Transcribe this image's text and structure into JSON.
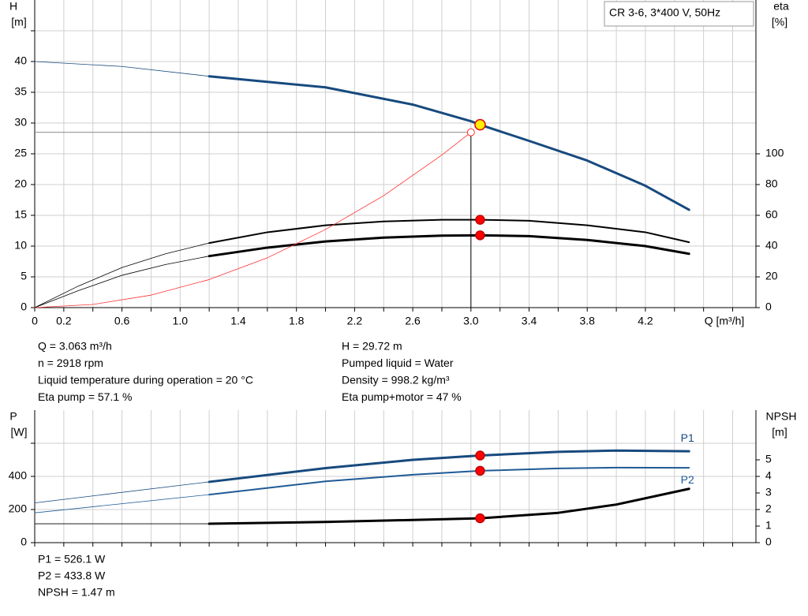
{
  "chart_data": [
    {
      "type": "line",
      "title": "CR 3-6, 3*400 V, 50Hz",
      "x_label": "Q [m³/h]",
      "y_label": [
        "H",
        "[m]"
      ],
      "y2_label": [
        "eta",
        "[%]"
      ],
      "xlim": [
        0,
        4.96
      ],
      "xticks": [
        0,
        0.2,
        0.6,
        {
          "value": 1.0,
          "label": "1.0"
        },
        1.4,
        1.8,
        2.2,
        2.6,
        {
          "value": 3.0,
          "label": "3.0"
        },
        3.4,
        3.8,
        4.2
      ],
      "xminorticks": [
        0.4,
        0.8,
        1.2,
        1.6,
        2.0,
        2.4,
        2.8,
        3.2,
        3.6,
        4.0,
        4.4,
        4.6,
        4.8
      ],
      "ylim": [
        0,
        50
      ],
      "yticks": [
        0,
        5,
        10,
        15,
        20,
        25,
        30,
        35,
        40
      ],
      "yminorticks": [
        45
      ],
      "y2lim": [
        0,
        200
      ],
      "y2ticks": [
        0,
        20,
        40,
        60,
        80,
        100
      ],
      "grid": true,
      "bold_from": 1.2,
      "series": [
        {
          "color": "#174a7e",
          "axis": "y",
          "width": 3,
          "x": [
            0,
            0.6,
            1.2,
            2.0,
            2.6,
            3.0,
            3.063,
            3.4,
            3.8,
            4.2,
            4.5
          ],
          "values": [
            40.0,
            39.2,
            37.6,
            35.8,
            33.0,
            30.3,
            29.72,
            27.1,
            23.9,
            19.8,
            15.9
          ]
        },
        {
          "color": "#000000",
          "axis": "y2",
          "width": 2,
          "x": [
            0,
            0.3,
            0.6,
            0.9,
            1.2,
            1.6,
            2.0,
            2.4,
            2.8,
            3.063,
            3.4,
            3.8,
            4.2,
            4.5
          ],
          "values": [
            0,
            14,
            26,
            35,
            42,
            49,
            53.5,
            56,
            57.1,
            57.1,
            56.5,
            53.5,
            49,
            42.5
          ]
        },
        {
          "color": "#000000",
          "axis": "y2",
          "width": 3,
          "x": [
            0,
            0.3,
            0.6,
            0.9,
            1.2,
            1.6,
            2.0,
            2.4,
            2.8,
            3.063,
            3.4,
            3.8,
            4.2,
            4.5
          ],
          "values": [
            0,
            11,
            21,
            28,
            33.5,
            39,
            43,
            45.5,
            46.8,
            47,
            46.5,
            44,
            40,
            35
          ]
        },
        {
          "color": "#ff3030",
          "axis": "y",
          "width": 0.8,
          "thin": true,
          "x": [
            0,
            0.4,
            0.8,
            1.2,
            1.6,
            2.0,
            2.4,
            2.8,
            3.0
          ],
          "values": [
            0,
            0.51,
            2.03,
            4.56,
            8.1,
            12.7,
            18.2,
            24.8,
            28.5
          ]
        }
      ],
      "crosshair": {
        "x": 3.0,
        "y": 28.5
      },
      "points": [
        {
          "x": 3.063,
          "y": 29.72,
          "axis": "y",
          "fill": "#ffee00",
          "stroke": "#e00000"
        },
        {
          "x": 3.063,
          "y": 57.1,
          "axis": "y2",
          "fill": "#ff0000",
          "stroke": "#c00000"
        },
        {
          "x": 3.063,
          "y": 47,
          "axis": "y2",
          "fill": "#ff0000",
          "stroke": "#c00000"
        }
      ]
    },
    {
      "type": "line",
      "y_label": [
        "P",
        "[W]"
      ],
      "y2_label": [
        "NPSH",
        "[m]"
      ],
      "xlim": [
        0,
        4.96
      ],
      "xticks": [],
      "xminorticks": [
        0,
        0.2,
        0.4,
        0.6,
        0.8,
        1.0,
        1.2,
        1.4,
        1.6,
        1.8,
        2.0,
        2.2,
        2.4,
        2.6,
        2.8,
        3.0,
        3.2,
        3.4,
        3.6,
        3.8,
        4.0,
        4.2,
        4.4,
        4.6,
        4.8
      ],
      "ylim": [
        0,
        800
      ],
      "yticks": [
        0,
        200,
        400
      ],
      "yminorticks": [
        600
      ],
      "y2lim": [
        0,
        8
      ],
      "y2ticks": [
        0,
        1,
        2,
        3,
        4,
        5
      ],
      "grid": true,
      "bold_from": 1.2,
      "series": [
        {
          "name": "P1",
          "label_side": "above",
          "color": "#174a7e",
          "axis": "y",
          "width": 3,
          "x": [
            0,
            1.2,
            2.0,
            2.6,
            3.063,
            3.6,
            4.0,
            4.5
          ],
          "values": [
            240,
            367,
            450,
            500,
            526.1,
            548,
            556,
            552
          ]
        },
        {
          "name": "P2",
          "label_side": "below",
          "color": "#1f5a96",
          "axis": "y",
          "width": 2,
          "x": [
            0,
            1.2,
            2.0,
            2.6,
            3.063,
            3.6,
            4.0,
            4.5
          ],
          "values": [
            180,
            290,
            370,
            410,
            433.8,
            448,
            453,
            452
          ]
        },
        {
          "color": "#000000",
          "axis": "y2",
          "width": 3,
          "x": [
            0,
            1.2,
            2.0,
            2.6,
            3.063,
            3.6,
            4.0,
            4.5
          ],
          "values": [
            1.14,
            1.14,
            1.25,
            1.37,
            1.47,
            1.8,
            2.3,
            3.25
          ]
        }
      ],
      "points": [
        {
          "x": 3.063,
          "y": 526.1,
          "axis": "y",
          "fill": "#ff0000",
          "stroke": "#c00000"
        },
        {
          "x": 3.063,
          "y": 433.8,
          "axis": "y",
          "fill": "#ff0000",
          "stroke": "#c00000"
        },
        {
          "x": 3.063,
          "y": 1.47,
          "axis": "y2",
          "fill": "#ff0000",
          "stroke": "#c00000"
        }
      ]
    }
  ],
  "info_top": [
    [
      "Q = 3.063 m³/h",
      "n = 2918 rpm",
      "Liquid temperature during operation = 20 °C",
      "Eta pump = 57.1 %"
    ],
    [
      "H = 29.72 m",
      "Pumped liquid = Water",
      "Density = 998.2 kg/m³",
      "Eta pump+motor = 47 %"
    ]
  ],
  "info_bottom": [
    "P1 = 526.1 W",
    "P2 = 433.8 W",
    "NPSH = 1.47 m"
  ]
}
